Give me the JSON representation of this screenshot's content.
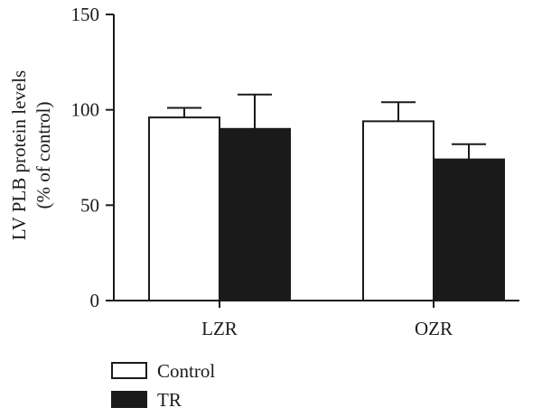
{
  "chart_data": {
    "type": "bar",
    "categories": [
      "LZR",
      "OZR"
    ],
    "series": [
      {
        "name": "Control",
        "values": [
          96,
          94
        ],
        "errors": [
          5,
          10
        ],
        "color": "#ffffff"
      },
      {
        "name": "TR",
        "values": [
          90,
          74
        ],
        "errors": [
          18,
          8
        ],
        "color": "#1a1a1a"
      }
    ],
    "ylabel_line1": "LV PLB protein levels",
    "ylabel_line2": "(% of control)",
    "ylim": [
      0,
      150
    ],
    "yticks": [
      "0",
      "50",
      "100",
      "150"
    ],
    "ytick_values": [
      0,
      50,
      100,
      150
    ],
    "grid": false,
    "legend_position": "bottom-left"
  }
}
